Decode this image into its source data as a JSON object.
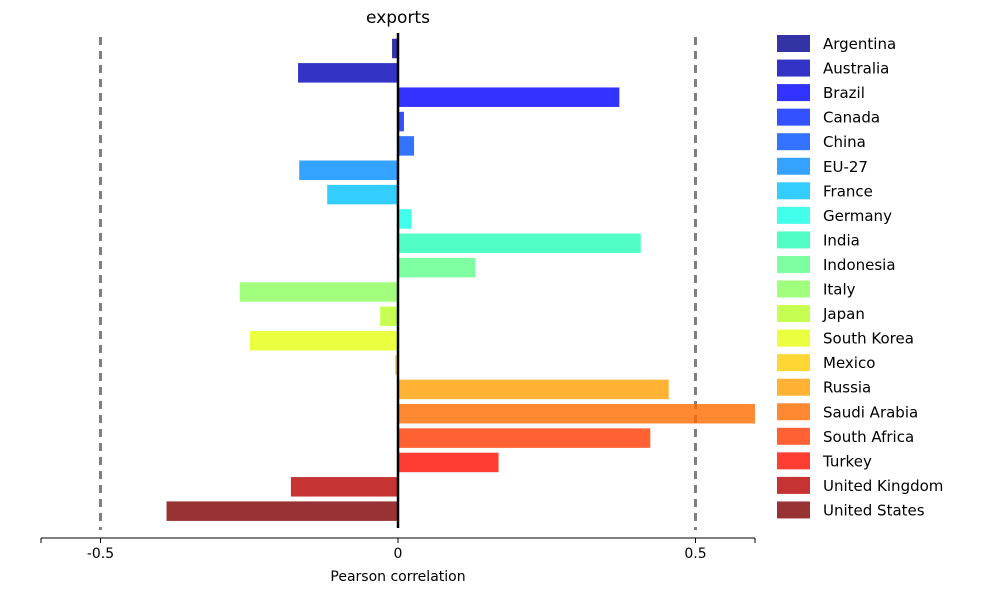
{
  "chart_data": {
    "type": "bar",
    "orientation": "horizontal",
    "title": "exports",
    "xlabel": "Pearson correlation",
    "ylabel": "",
    "xlim": [
      -0.6,
      0.6
    ],
    "xticks": [
      -0.5,
      0,
      0.5
    ],
    "xtick_labels": [
      "-0.5",
      "0",
      "0.5"
    ],
    "reference_lines": [
      {
        "value": -0.5,
        "style": "dashed",
        "color": "#7f7f7f"
      },
      {
        "value": 0.5,
        "style": "dashed",
        "color": "#7f7f7f"
      },
      {
        "value": 0,
        "style": "solid",
        "color": "#000000"
      }
    ],
    "legend_position": "right",
    "categories": [
      "Argentina",
      "Australia",
      "Brazil",
      "Canada",
      "China",
      "EU-27",
      "France",
      "Germany",
      "India",
      "Indonesia",
      "Italy",
      "Japan",
      "South Korea",
      "Mexico",
      "Russia",
      "Saudi Arabia",
      "South Africa",
      "Turkey",
      "United Kingdom",
      "United States"
    ],
    "values": [
      -0.01,
      -0.168,
      0.372,
      0.01,
      0.027,
      -0.166,
      -0.119,
      0.023,
      0.408,
      0.13,
      -0.266,
      -0.03,
      -0.249,
      -0.005,
      0.455,
      0.6,
      0.424,
      0.169,
      -0.18,
      -0.389
    ],
    "colors": [
      "#00008f",
      "#0000b8",
      "#0000ff",
      "#0025ff",
      "#0050ff",
      "#008cff",
      "#00c0ff",
      "#11ffe6",
      "#26ffb8",
      "#5cff8a",
      "#8aff5c",
      "#b8ff26",
      "#e6ff11",
      "#ffcc00",
      "#ff9f00",
      "#ff6c00",
      "#ff3900",
      "#ff0d00",
      "#b80000",
      "#800000"
    ]
  }
}
